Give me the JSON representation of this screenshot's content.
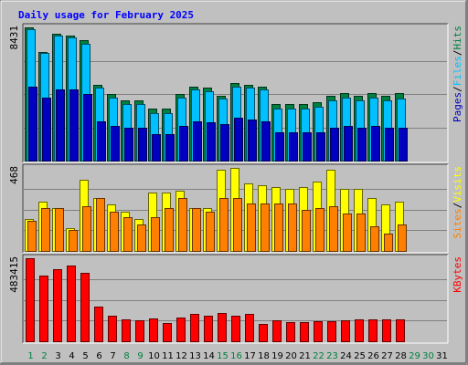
{
  "chart_data": {
    "type": "bar",
    "title": "Daily usage for February 2025",
    "days": [
      "1",
      "2",
      "3",
      "4",
      "5",
      "6",
      "7",
      "8",
      "9",
      "10",
      "11",
      "12",
      "13",
      "14",
      "15",
      "16",
      "17",
      "18",
      "19",
      "20",
      "21",
      "22",
      "23",
      "24",
      "25",
      "26",
      "27",
      "28",
      "29",
      "30",
      "31"
    ],
    "weekend_days": [
      "1",
      "2",
      "8",
      "9",
      "15",
      "16",
      "22",
      "23",
      "29",
      "30"
    ],
    "panels": [
      {
        "id": "hits",
        "max_label": "8431",
        "ymax": 8431,
        "legend": [
          "Pages",
          "Files",
          "Hits"
        ],
        "series": [
          {
            "name": "Hits",
            "color": "#008040",
            "values": [
              8431,
              6900,
              8000,
              7900,
              7600,
              4800,
              4200,
              3800,
              3800,
              3300,
              3300,
              4200,
              4700,
              4600,
              4100,
              4900,
              4800,
              4700,
              3600,
              3600,
              3600,
              3700,
              4100,
              4300,
              4100,
              4300,
              4100,
              4300
            ]
          },
          {
            "name": "Files",
            "color": "#00c0ff",
            "values": [
              8300,
              6800,
              7900,
              7800,
              7400,
              4600,
              4000,
              3600,
              3600,
              3000,
              3000,
              4000,
              4500,
              4400,
              3900,
              4700,
              4600,
              4500,
              3300,
              3300,
              3300,
              3400,
              3800,
              4000,
              3800,
              4000,
              3800,
              3900
            ]
          },
          {
            "name": "Pages",
            "color": "#0000c0",
            "values": [
              4700,
              4000,
              4500,
              4500,
              4200,
              2500,
              2200,
              2100,
              2100,
              1700,
              1700,
              2200,
              2500,
              2400,
              2300,
              2700,
              2600,
              2500,
              1800,
              1800,
              1800,
              1800,
              2100,
              2200,
              2100,
              2200,
              2100,
              2100
            ]
          }
        ]
      },
      {
        "id": "visits",
        "max_label": "468",
        "ymax": 468,
        "legend": [
          "Sites",
          "Visits"
        ],
        "series": [
          {
            "name": "Visits",
            "color": "#ffff00",
            "values": [
              180,
              280,
              240,
              130,
              400,
              300,
              260,
              220,
              180,
              330,
              330,
              340,
              240,
              240,
              460,
              470,
              380,
              370,
              360,
              350,
              360,
              390,
              460,
              350,
              350,
              300,
              260,
              280
            ]
          },
          {
            "name": "Sites",
            "color": "#ff8000",
            "values": [
              170,
              240,
              240,
              120,
              250,
              300,
              220,
              190,
              150,
              190,
              240,
              300,
              240,
              220,
              300,
              300,
              270,
              270,
              270,
              270,
              230,
              240,
              250,
              210,
              210,
              140,
              100,
              150
            ]
          }
        ]
      },
      {
        "id": "kbytes",
        "max_label": "483415",
        "ymax": 483415,
        "legend": [
          "KBytes"
        ],
        "series": [
          {
            "name": "KBytes",
            "color": "#ff0000",
            "values": [
              483415,
              380000,
              420000,
              440000,
              400000,
              200000,
              150000,
              130000,
              120000,
              135000,
              105000,
              140000,
              160000,
              150000,
              165000,
              150000,
              160000,
              100000,
              120000,
              110000,
              110000,
              115000,
              115000,
              120000,
              130000,
              125000,
              125000,
              125000
            ]
          }
        ]
      }
    ]
  }
}
